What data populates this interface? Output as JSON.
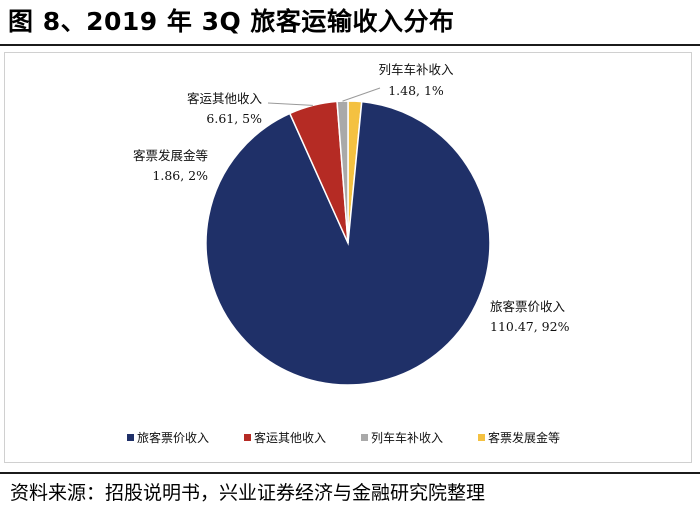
{
  "figure": {
    "title": "图 8、2019 年 3Q 旅客运输收入分布",
    "source": "资料来源：招股说明书，兴业证券经济与金融研究院整理"
  },
  "chart_data": {
    "type": "pie",
    "title": "2019 年 3Q 旅客运输收入分布",
    "slices": [
      {
        "name": "旅客票价收入",
        "value": 110.47,
        "percent_label": "92%",
        "label": "110.47, 92%",
        "color": "#1f3068"
      },
      {
        "name": "客运其他收入",
        "value": 6.61,
        "percent_label": "5%",
        "label": "6.61, 5%",
        "color": "#b52b24"
      },
      {
        "name": "列车车补收入",
        "value": 1.48,
        "percent_label": "1%",
        "label": "1.48, 1%",
        "color": "#a9a9a9"
      },
      {
        "name": "客票发展金等",
        "value": 1.86,
        "percent_label": "2%",
        "label": "1.86, 2%",
        "color": "#f4c141"
      }
    ],
    "legend_position": "bottom",
    "start_angle": "12 o'clock",
    "direction": "counterclockwise"
  }
}
